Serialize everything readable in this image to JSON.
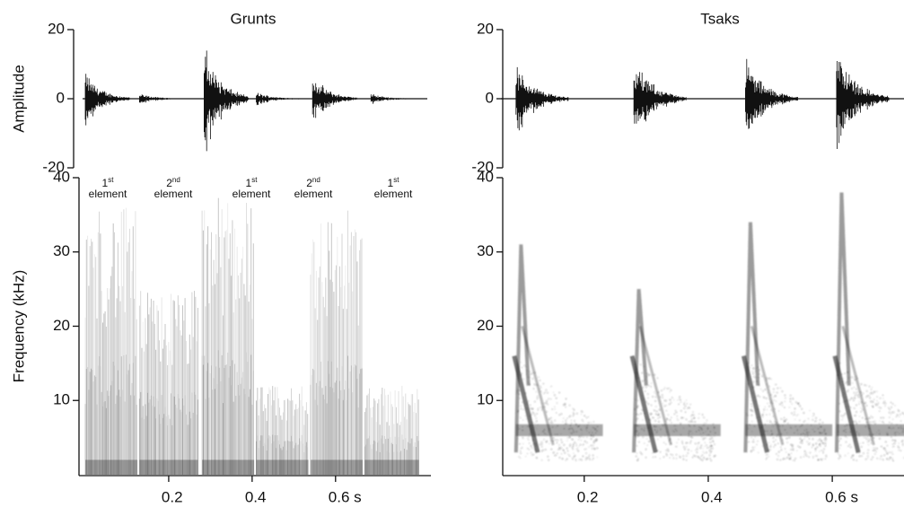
{
  "chart_data": [
    {
      "type": "waveform",
      "title": "Grunts",
      "ylabel": "Amplitude",
      "x": [
        0.0,
        0.13,
        0.285,
        0.41,
        0.545,
        0.685
      ],
      "values": [
        8,
        1.5,
        16,
        2,
        7,
        1.5
      ],
      "xlim": [
        0,
        0.82
      ],
      "ylim": [
        -20,
        20
      ],
      "yticks": [
        -20,
        0,
        20
      ],
      "color": "#111111"
    },
    {
      "type": "waveform",
      "title": "Tsaks",
      "x": [
        0.09,
        0.28,
        0.46,
        0.607
      ],
      "values": [
        10,
        12,
        12,
        15
      ],
      "xlim": [
        0.07,
        0.72
      ],
      "ylim": [
        -20,
        20
      ],
      "yticks": [
        -20,
        0,
        20
      ],
      "color": "#111111"
    },
    {
      "type": "spectrogram",
      "ylabel": "Frequency (kHz)",
      "x": [
        0.0,
        0.13,
        0.28,
        0.41,
        0.54,
        0.67
      ],
      "x_end": [
        0.125,
        0.27,
        0.405,
        0.535,
        0.665,
        0.8
      ],
      "values": [
        36,
        25,
        38,
        12,
        36,
        12
      ],
      "annotations": [
        {
          "ordinal": "1",
          "suffix": "st",
          "text": "element"
        },
        {
          "ordinal": "2",
          "suffix": "nd",
          "text": "element"
        },
        {
          "ordinal": "1",
          "suffix": "st",
          "text": "element"
        },
        {
          "ordinal": "2",
          "suffix": "nd",
          "text": "element"
        },
        {
          "ordinal": "1",
          "suffix": "st",
          "text": "element"
        }
      ],
      "xlim": [
        0,
        0.82
      ],
      "ylim": [
        0,
        40
      ],
      "yticks": [
        10,
        20,
        30,
        40
      ],
      "xticks": [
        0.2,
        0.4,
        {
          "value": 0.6,
          "label": "0.6 s"
        }
      ],
      "color": "#222222"
    },
    {
      "type": "spectrogram",
      "x": [
        0.09,
        0.28,
        0.46,
        0.607
      ],
      "values": [
        31,
        25,
        34,
        38
      ],
      "xlim": [
        0.07,
        0.72
      ],
      "ylim": [
        0,
        40
      ],
      "yticks": [
        10,
        20,
        30,
        40
      ],
      "xticks": [
        0.2,
        0.4,
        {
          "value": 0.6,
          "label": "0.6 s"
        }
      ],
      "color": "#222222"
    }
  ]
}
